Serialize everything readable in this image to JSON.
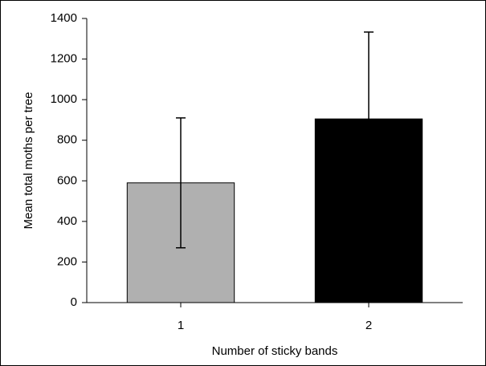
{
  "chart_data": {
    "type": "bar",
    "x_label": "Number of sticky bands",
    "y_label": "Mean total moths per tree",
    "categories": [
      "1",
      "2"
    ],
    "values": [
      590,
      905
    ],
    "errors": [
      320,
      428
    ],
    "colors": [
      "#b0b0b0",
      "#000000"
    ],
    "ylim": [
      0,
      1400
    ],
    "yticks": [
      0,
      200,
      400,
      600,
      800,
      1000,
      1200,
      1400
    ],
    "grid": false
  }
}
